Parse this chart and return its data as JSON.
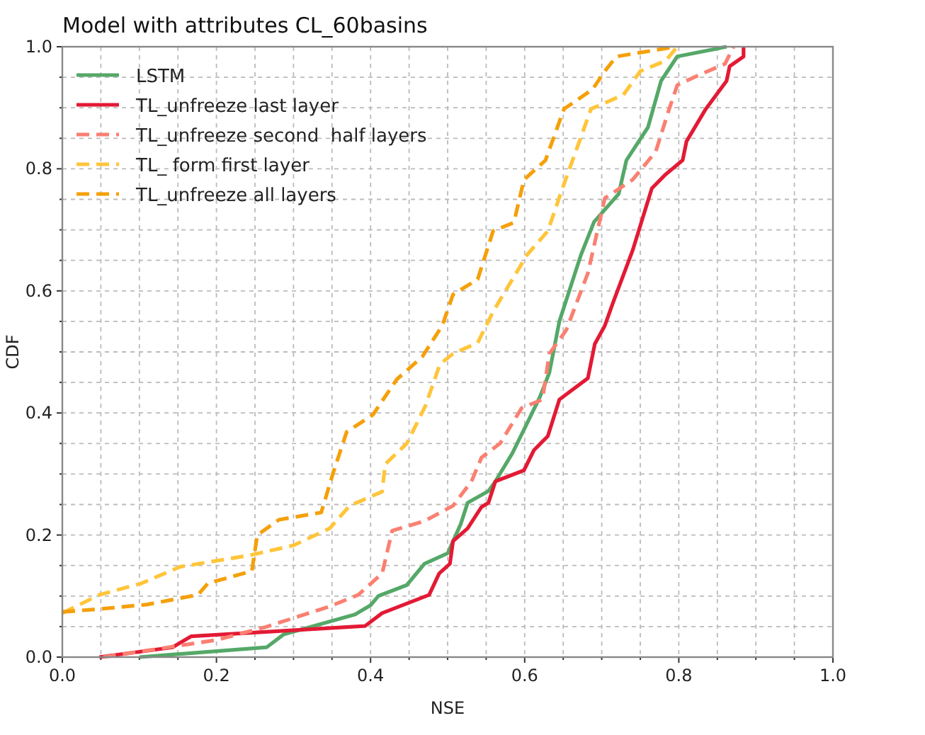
{
  "chart_data": {
    "type": "line",
    "title": "Model with attributes CL_60basins",
    "xlabel": "NSE",
    "ylabel": "CDF",
    "xlim": [
      0,
      1
    ],
    "ylim": [
      0,
      1
    ],
    "xticks": [
      {
        "value": 0,
        "label": "0.0"
      },
      {
        "value": 0.05,
        "label": null
      },
      {
        "value": 0.1,
        "label": null
      },
      {
        "value": 0.15,
        "label": null
      },
      {
        "value": 0.2,
        "label": "0.2"
      },
      {
        "value": 0.25,
        "label": null
      },
      {
        "value": 0.3,
        "label": null
      },
      {
        "value": 0.35,
        "label": null
      },
      {
        "value": 0.4,
        "label": "0.4"
      },
      {
        "value": 0.45,
        "label": null
      },
      {
        "value": 0.5,
        "label": null
      },
      {
        "value": 0.55,
        "label": null
      },
      {
        "value": 0.6,
        "label": "0.6"
      },
      {
        "value": 0.65,
        "label": null
      },
      {
        "value": 0.7,
        "label": null
      },
      {
        "value": 0.75,
        "label": null
      },
      {
        "value": 0.8,
        "label": "0.8"
      },
      {
        "value": 0.85,
        "label": null
      },
      {
        "value": 0.9,
        "label": null
      },
      {
        "value": 0.95,
        "label": null
      },
      {
        "value": 1,
        "label": "1.0"
      }
    ],
    "yticks": [
      {
        "value": 0,
        "label": "0.0"
      },
      {
        "value": 0.05,
        "label": null
      },
      {
        "value": 0.1,
        "label": null
      },
      {
        "value": 0.15,
        "label": null
      },
      {
        "value": 0.2,
        "label": "0.2"
      },
      {
        "value": 0.25,
        "label": null
      },
      {
        "value": 0.3,
        "label": null
      },
      {
        "value": 0.35,
        "label": null
      },
      {
        "value": 0.4,
        "label": "0.4"
      },
      {
        "value": 0.45,
        "label": null
      },
      {
        "value": 0.5,
        "label": null
      },
      {
        "value": 0.55,
        "label": null
      },
      {
        "value": 0.6,
        "label": "0.6"
      },
      {
        "value": 0.65,
        "label": null
      },
      {
        "value": 0.7,
        "label": null
      },
      {
        "value": 0.75,
        "label": null
      },
      {
        "value": 0.8,
        "label": "0.8"
      },
      {
        "value": 0.85,
        "label": null
      },
      {
        "value": 0.9,
        "label": null
      },
      {
        "value": 0.95,
        "label": null
      },
      {
        "value": 1,
        "label": "1.0"
      }
    ],
    "grid": true,
    "legend": "top left",
    "marker": "none",
    "series": [
      {
        "name": "LSTM",
        "color": "#55a868",
        "line_style": "solid",
        "x": [
          0.1,
          0.265,
          0.287,
          0.38,
          0.4,
          0.41,
          0.447,
          0.47,
          0.5,
          0.517,
          0.526,
          0.553,
          0.562,
          0.584,
          0.605,
          0.62,
          0.632,
          0.645,
          0.673,
          0.69,
          0.722,
          0.732,
          0.76,
          0.777,
          0.798,
          0.862
        ],
        "values": [
          0,
          0.016,
          0.037,
          0.07,
          0.085,
          0.1,
          0.118,
          0.153,
          0.17,
          0.218,
          0.253,
          0.272,
          0.288,
          0.334,
          0.388,
          0.427,
          0.466,
          0.55,
          0.659,
          0.713,
          0.759,
          0.814,
          0.868,
          0.944,
          0.984,
          1
        ]
      },
      {
        "name": "TL_unfreeze last layer",
        "color": "#e31a35",
        "line_style": "solid",
        "x": [
          0.048,
          0.143,
          0.167,
          0.393,
          0.415,
          0.476,
          0.489,
          0.503,
          0.507,
          0.526,
          0.544,
          0.553,
          0.562,
          0.599,
          0.612,
          0.63,
          0.645,
          0.682,
          0.691,
          0.704,
          0.715,
          0.74,
          0.765,
          0.783,
          0.805,
          0.81,
          0.835,
          0.862,
          0.866,
          0.884,
          0.884
        ],
        "values": [
          0,
          0.016,
          0.034,
          0.051,
          0.072,
          0.102,
          0.137,
          0.153,
          0.19,
          0.211,
          0.246,
          0.253,
          0.288,
          0.306,
          0.339,
          0.362,
          0.422,
          0.457,
          0.513,
          0.543,
          0.582,
          0.666,
          0.768,
          0.791,
          0.814,
          0.845,
          0.898,
          0.944,
          0.968,
          0.984,
          1
        ]
      },
      {
        "name": "TL_unfreeze second  half layers",
        "color": "#fa8072",
        "line_style": "dashed",
        "x": [
          0.053,
          0.2,
          0.263,
          0.347,
          0.384,
          0.415,
          0.428,
          0.47,
          0.507,
          0.531,
          0.544,
          0.568,
          0.596,
          0.623,
          0.632,
          0.649,
          0.654,
          0.682,
          0.704,
          0.74,
          0.77,
          0.787,
          0.798,
          0.825,
          0.86,
          0.871
        ],
        "values": [
          0,
          0.028,
          0.049,
          0.083,
          0.102,
          0.137,
          0.207,
          0.223,
          0.248,
          0.288,
          0.327,
          0.35,
          0.408,
          0.422,
          0.497,
          0.527,
          0.536,
          0.629,
          0.752,
          0.782,
          0.828,
          0.896,
          0.937,
          0.953,
          0.972,
          1
        ]
      },
      {
        "name": "TL_ form first layer",
        "color": "#ffc53a",
        "line_style": "dashed",
        "x": [
          0,
          0.048,
          0.103,
          0.153,
          0.244,
          0.3,
          0.347,
          0.373,
          0.415,
          0.419,
          0.447,
          0.471,
          0.49,
          0.507,
          0.539,
          0.559,
          0.603,
          0.63,
          0.649,
          0.669,
          0.686,
          0.728,
          0.75,
          0.783,
          0.798
        ],
        "values": [
          0.072,
          0.102,
          0.121,
          0.148,
          0.167,
          0.183,
          0.211,
          0.248,
          0.271,
          0.316,
          0.35,
          0.411,
          0.48,
          0.497,
          0.515,
          0.566,
          0.659,
          0.698,
          0.768,
          0.838,
          0.898,
          0.921,
          0.96,
          0.977,
          1
        ]
      },
      {
        "name": "TL_unfreeze all layers",
        "color": "#f5a00a",
        "line_style": "dashed",
        "x": [
          0,
          0.05,
          0.109,
          0.176,
          0.189,
          0.246,
          0.253,
          0.281,
          0.336,
          0.351,
          0.369,
          0.403,
          0.434,
          0.467,
          0.493,
          0.507,
          0.539,
          0.559,
          0.586,
          0.599,
          0.627,
          0.651,
          0.688,
          0.704,
          0.719,
          0.796
        ],
        "values": [
          0.074,
          0.079,
          0.086,
          0.102,
          0.121,
          0.141,
          0.2,
          0.225,
          0.237,
          0.3,
          0.369,
          0.397,
          0.455,
          0.492,
          0.543,
          0.594,
          0.619,
          0.698,
          0.712,
          0.782,
          0.814,
          0.898,
          0.93,
          0.96,
          0.984,
          1
        ]
      }
    ]
  }
}
